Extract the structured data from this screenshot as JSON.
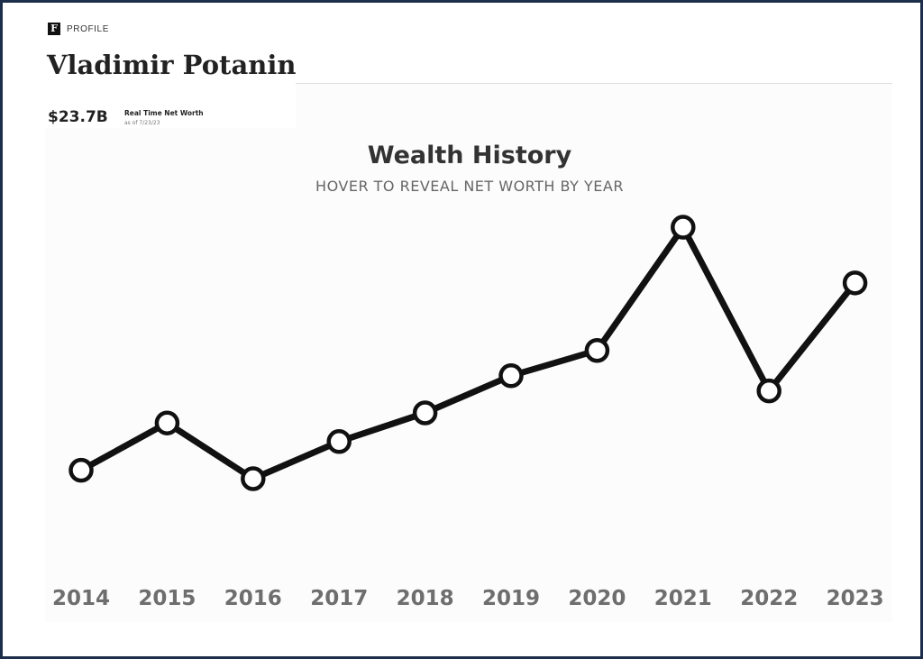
{
  "header": {
    "brand_logo": "F",
    "brand_label": "PROFILE",
    "name": "Vladimir Potanin",
    "net_worth": "$23.7B",
    "net_worth_label": "Real Time Net Worth",
    "net_worth_date": "as of 7/23/23"
  },
  "colors": {
    "frame": "#1c2e4a",
    "line": "#111111",
    "marker_fill": "#ffffff",
    "title": "#333333",
    "subtitle": "#666666",
    "tick_label": "#6e6e6e"
  },
  "chart_data": {
    "type": "line",
    "title": "Wealth History",
    "subtitle": "HOVER TO REVEAL NET WORTH BY YEAR",
    "xlabel": "",
    "ylabel": "",
    "categories": [
      "2014",
      "2015",
      "2016",
      "2017",
      "2018",
      "2019",
      "2020",
      "2021",
      "2022",
      "2023"
    ],
    "series": [
      {
        "values": [
          12.6,
          15.4,
          12.1,
          14.3,
          16.0,
          18.2,
          19.7,
          27.0,
          17.3,
          23.7
        ]
      }
    ],
    "ylim": [
      10,
      30
    ],
    "grid": false,
    "markers": "hollow-circle"
  }
}
